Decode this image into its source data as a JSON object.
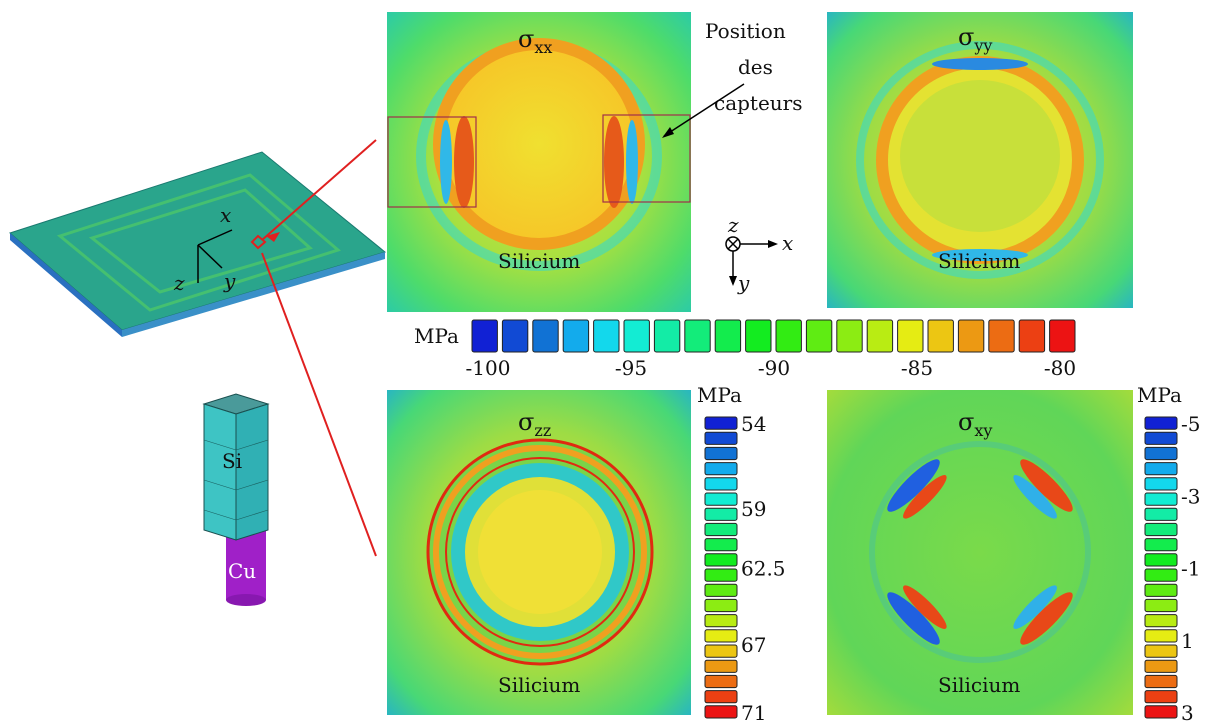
{
  "panels": [
    {
      "symbol": "σ",
      "subscript": "xx",
      "label": "Silicium"
    },
    {
      "symbol": "σ",
      "subscript": "yy",
      "label": "Silicium"
    },
    {
      "symbol": "σ",
      "subscript": "zz",
      "label": "Silicium"
    },
    {
      "symbol": "σ",
      "subscript": "xy",
      "label": "Silicium"
    }
  ],
  "annotation": [
    "Position",
    "des",
    "capteurs"
  ],
  "colorbars": [
    {
      "unit": "MPa",
      "ticks": [
        -100,
        -95,
        -90,
        -85,
        -80
      ]
    },
    {
      "unit": "MPa",
      "ticks": [
        54,
        59,
        62.5,
        67,
        71
      ]
    },
    {
      "unit": "MPa",
      "ticks": [
        -5,
        -3,
        -1,
        1,
        3
      ]
    }
  ],
  "axes_legend": {
    "z": "z",
    "x": "x",
    "y": "y"
  },
  "board_axes": {
    "x": "x",
    "z": "z",
    "y": "y"
  },
  "die": {
    "top": "Si",
    "bottom": "Cu"
  }
}
